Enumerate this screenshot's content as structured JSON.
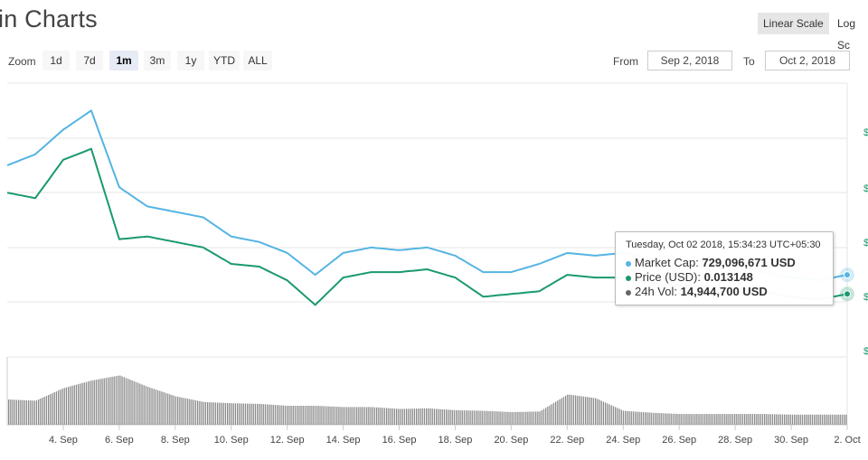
{
  "header": {
    "title": "in Charts",
    "linear_scale": "Linear Scale",
    "log_scale": "Log Sc"
  },
  "zoom": {
    "label": "Zoom",
    "buttons": [
      "1d",
      "7d",
      "1m",
      "3m",
      "1y",
      "YTD",
      "ALL"
    ],
    "active": "1m"
  },
  "range": {
    "from_label": "From",
    "from_value": "Sep 2, 2018",
    "to_label": "To",
    "to_value": "Oct 2, 2018"
  },
  "tooltip": {
    "date": "Tuesday, Oct 02 2018, 15:34:23 UTC+05:30",
    "market_cap_label": "Market Cap:",
    "market_cap_value": "729,096,671 USD",
    "price_label": "Price (USD):",
    "price_value": "0.013148",
    "volume_label": "24h Vol:",
    "volume_value": "14,944,700 USD"
  },
  "colors": {
    "market_cap": "#55b4e3",
    "price": "#1a9a6c",
    "volume": "#888888",
    "accent_axis": "#1a9a6c"
  },
  "chart_data": {
    "type": "line",
    "title": "",
    "x_ticks": [
      "4. Sep",
      "6. Sep",
      "8. Sep",
      "10. Sep",
      "12. Sep",
      "14. Sep",
      "16. Sep",
      "18. Sep",
      "20. Sep",
      "22. Sep",
      "24. Sep",
      "26. Sep",
      "28. Sep",
      "30. Sep",
      "2. Oct"
    ],
    "x_range": [
      "2018-09-02",
      "2018-10-02"
    ],
    "y_axis_labels_right": [
      "$",
      "$",
      "$",
      "$",
      "$"
    ],
    "series": [
      {
        "name": "Market Cap",
        "x": [
          "2018-09-02",
          "2018-09-03",
          "2018-09-04",
          "2018-09-05",
          "2018-09-06",
          "2018-09-07",
          "2018-09-08",
          "2018-09-09",
          "2018-09-10",
          "2018-09-11",
          "2018-09-12",
          "2018-09-13",
          "2018-09-14",
          "2018-09-15",
          "2018-09-16",
          "2018-09-17",
          "2018-09-18",
          "2018-09-19",
          "2018-09-20",
          "2018-09-21",
          "2018-09-22",
          "2018-09-23",
          "2018-09-24",
          "2018-09-25",
          "2018-09-26",
          "2018-09-27",
          "2018-09-28",
          "2018-09-29",
          "2018-09-30",
          "2018-10-01",
          "2018-10-02"
        ],
        "values": [
          0.7,
          0.74,
          0.83,
          0.9,
          0.62,
          0.55,
          0.53,
          0.51,
          0.44,
          0.42,
          0.38,
          0.3,
          0.38,
          0.4,
          0.39,
          0.4,
          0.37,
          0.31,
          0.31,
          0.34,
          0.38,
          0.37,
          0.38,
          0.36,
          0.35,
          0.35,
          0.33,
          0.31,
          0.29,
          0.28,
          0.3
        ]
      },
      {
        "name": "Price (USD)",
        "x": [
          "2018-09-02",
          "2018-09-03",
          "2018-09-04",
          "2018-09-05",
          "2018-09-06",
          "2018-09-07",
          "2018-09-08",
          "2018-09-09",
          "2018-09-10",
          "2018-09-11",
          "2018-09-12",
          "2018-09-13",
          "2018-09-14",
          "2018-09-15",
          "2018-09-16",
          "2018-09-17",
          "2018-09-18",
          "2018-09-19",
          "2018-09-20",
          "2018-09-21",
          "2018-09-22",
          "2018-09-23",
          "2018-09-24",
          "2018-09-25",
          "2018-09-26",
          "2018-09-27",
          "2018-09-28",
          "2018-09-29",
          "2018-09-30",
          "2018-10-01",
          "2018-10-02"
        ],
        "values": [
          0.6,
          0.58,
          0.72,
          0.76,
          0.43,
          0.44,
          0.42,
          0.4,
          0.34,
          0.33,
          0.28,
          0.19,
          0.29,
          0.31,
          0.31,
          0.32,
          0.29,
          0.22,
          0.23,
          0.24,
          0.3,
          0.29,
          0.29,
          0.27,
          0.26,
          0.26,
          0.25,
          0.24,
          0.22,
          0.21,
          0.23
        ]
      },
      {
        "name": "24h Vol",
        "x": [
          "2018-09-02",
          "2018-09-03",
          "2018-09-04",
          "2018-09-05",
          "2018-09-06",
          "2018-09-07",
          "2018-09-08",
          "2018-09-09",
          "2018-09-10",
          "2018-09-11",
          "2018-09-12",
          "2018-09-13",
          "2018-09-14",
          "2018-09-15",
          "2018-09-16",
          "2018-09-17",
          "2018-09-18",
          "2018-09-19",
          "2018-09-20",
          "2018-09-21",
          "2018-09-22",
          "2018-09-23",
          "2018-09-24",
          "2018-09-25",
          "2018-09-26",
          "2018-09-27",
          "2018-09-28",
          "2018-09-29",
          "2018-09-30",
          "2018-10-01",
          "2018-10-02"
        ],
        "values": [
          0.4,
          0.38,
          0.58,
          0.7,
          0.78,
          0.6,
          0.45,
          0.36,
          0.34,
          0.33,
          0.3,
          0.3,
          0.28,
          0.28,
          0.25,
          0.26,
          0.23,
          0.22,
          0.2,
          0.21,
          0.48,
          0.42,
          0.22,
          0.19,
          0.17,
          0.17,
          0.17,
          0.17,
          0.16,
          0.16,
          0.16
        ]
      }
    ],
    "grid": true,
    "legend": "none"
  }
}
